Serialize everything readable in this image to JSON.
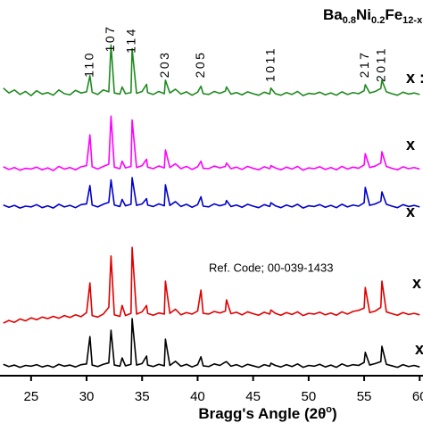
{
  "chart_data": {
    "type": "line",
    "title_parts": [
      "Ba",
      "0.8",
      "Ni",
      "0.2",
      "Fe",
      "12-x"
    ],
    "x_label_parts": [
      "Bragg's Angle (2θ",
      "o",
      ")"
    ],
    "annotation": "Ref. Code; 00-039-1433",
    "peak_labels": [
      {
        "label": "110",
        "x": 30.3
      },
      {
        "label": "107",
        "x": 32.2
      },
      {
        "label": "114",
        "x": 34.1
      },
      {
        "label": "203",
        "x": 37.1
      },
      {
        "label": "205",
        "x": 40.3
      },
      {
        "label": "1011",
        "x": 46.6
      },
      {
        "label": "217",
        "x": 55.1
      },
      {
        "label": "2011",
        "x": 56.6
      }
    ],
    "xlim": [
      22.2,
      60.3
    ],
    "ylim": [
      0,
      100
    ],
    "xticks": [
      25,
      30,
      35,
      40,
      45,
      50,
      55,
      60
    ],
    "x": [
      22.5,
      23,
      23.5,
      24,
      24.5,
      25,
      25.5,
      26,
      26.5,
      27,
      27.5,
      28,
      28.5,
      29,
      29.5,
      30,
      30.3,
      30.5,
      31,
      31.5,
      32,
      32.2,
      32.5,
      33,
      33.2,
      33.5,
      34,
      34.1,
      34.5,
      35,
      35.4,
      35.5,
      36,
      36.5,
      37,
      37.1,
      37.5,
      38,
      38.5,
      39,
      39.5,
      40,
      40.3,
      40.5,
      41,
      41.5,
      42,
      42.5,
      42.6,
      43,
      43.5,
      44,
      44.5,
      45,
      45.5,
      46,
      46.5,
      46.6,
      47,
      47.5,
      48,
      48.5,
      49,
      49.5,
      50,
      50.5,
      51,
      51.5,
      52,
      52.5,
      53,
      53.5,
      54,
      54.5,
      55,
      55.1,
      55.5,
      56,
      56.5,
      56.6,
      57,
      57.5,
      58,
      58.5,
      59,
      59.5,
      60
    ],
    "series": [
      {
        "name": "x :",
        "color": "#1f8a1f",
        "values": [
          76.5,
          75.2,
          76,
          74.8,
          75.6,
          74.5,
          75.8,
          74.9,
          75.3,
          74.6,
          76,
          75,
          74.7,
          75.9,
          75.2,
          75.5,
          79.8,
          75.4,
          74.8,
          76,
          75.5,
          88,
          75.2,
          74.9,
          76.8,
          75,
          75.3,
          87,
          75.1,
          75.6,
          77.5,
          75.3,
          74.8,
          75.6,
          75,
          78.6,
          75.2,
          76.2,
          74.9,
          75.5,
          74.6,
          75.4,
          77,
          75,
          74.8,
          75.6,
          75.1,
          75.7,
          76.8,
          74.9,
          75.3,
          74.7,
          75.5,
          75,
          74.6,
          75.4,
          74.9,
          76.5,
          75,
          74.6,
          75.3,
          74.8,
          75.6,
          74.5,
          75.1,
          74.9,
          75.4,
          74.7,
          75.2,
          74.6,
          75.5,
          74.8,
          75.3,
          75,
          75.8,
          77.4,
          75.2,
          75.6,
          76.4,
          78.6,
          75.5,
          75,
          74.6,
          75.4,
          74.9,
          75.2,
          74.8
        ]
      },
      {
        "name": "x",
        "color": "#ff00ff",
        "values": [
          55.5,
          54.8,
          55.3,
          54.6,
          55.1,
          54.9,
          55.4,
          54.7,
          55.2,
          54.5,
          55.6,
          54.9,
          55.3,
          54.7,
          55.5,
          55.8,
          64,
          55.5,
          54.9,
          55.6,
          56.2,
          69,
          55.4,
          55,
          57,
          55.2,
          55.6,
          68,
          55.3,
          55.8,
          57.5,
          55.4,
          55,
          55.7,
          55.2,
          60,
          55.3,
          56.3,
          55,
          55.6,
          54.8,
          55.5,
          57,
          55.1,
          55,
          55.7,
          55.2,
          55.6,
          56.5,
          55,
          55.4,
          54.8,
          55.6,
          55.1,
          54.7,
          55.5,
          55,
          55.8,
          55.2,
          54.7,
          55.4,
          54.9,
          55.6,
          54.6,
          55.2,
          55,
          55.5,
          54.8,
          55.3,
          54.7,
          55.6,
          54.9,
          55.4,
          55.1,
          56,
          59,
          55.3,
          55.7,
          56.5,
          59.5,
          55.6,
          55.1,
          54.7,
          55.5,
          55,
          55.3,
          54.9
        ]
      },
      {
        "name": "x",
        "color": "#0000cc",
        "values": [
          45.3,
          44.7,
          45.2,
          44.5,
          45,
          44.8,
          45.4,
          44.6,
          45.1,
          44.5,
          45.5,
          44.8,
          45.2,
          44.6,
          45.4,
          45.6,
          50.5,
          45.3,
          44.8,
          45.5,
          46,
          52,
          45.3,
          44.9,
          46.8,
          45.1,
          45.5,
          52.6,
          45.2,
          45.6,
          47,
          45.3,
          44.9,
          45.6,
          45.1,
          50.7,
          45.2,
          46.2,
          44.9,
          45.5,
          44.7,
          45.4,
          47.5,
          45,
          44.8,
          45.6,
          45.1,
          45.5,
          46.5,
          44.9,
          45.3,
          44.7,
          45.5,
          45,
          44.6,
          45.4,
          44.9,
          45.9,
          45.1,
          44.6,
          45.3,
          44.8,
          45.5,
          44.5,
          45.1,
          44.9,
          45.4,
          44.7,
          45.2,
          44.6,
          45.5,
          44.8,
          45.3,
          45,
          45.9,
          50,
          45.2,
          45.6,
          46.3,
          48.8,
          45.5,
          45,
          44.6,
          45.4,
          44.9,
          45.2,
          44.8
        ]
      },
      {
        "name": "x",
        "color": "#e00000",
        "values": [
          13.8,
          14.5,
          14,
          14.9,
          14.4,
          15.2,
          14.7,
          15.4,
          15,
          15.6,
          15.1,
          15.8,
          15.3,
          16,
          15.5,
          16.6,
          24.5,
          15.8,
          15.4,
          16.2,
          18,
          31.7,
          16,
          15.6,
          18.5,
          15.8,
          16.4,
          34,
          16.2,
          16.8,
          18.5,
          16.4,
          15.9,
          16.5,
          16.2,
          25,
          16.4,
          17.5,
          16,
          16.6,
          16.2,
          17,
          22.6,
          16.4,
          16.2,
          16.9,
          16.5,
          17,
          20,
          16.3,
          16.7,
          16,
          16.8,
          16.3,
          15.9,
          16.7,
          16.2,
          17.3,
          16.4,
          15.9,
          16.6,
          16.1,
          16.8,
          15.8,
          16.4,
          16.2,
          16.7,
          16,
          16.5,
          15.9,
          16.8,
          16.2,
          16.9,
          17.2,
          17.8,
          23.3,
          16.6,
          17,
          18,
          25,
          16.8,
          16.3,
          15.9,
          16.6,
          16.1,
          16.4,
          16
        ]
      },
      {
        "name": "x",
        "color": "#000000",
        "values": [
          2.8,
          2.2,
          2.6,
          2,
          2.5,
          2.3,
          2.7,
          2.1,
          2.5,
          2,
          2.8,
          2.3,
          2.6,
          2.1,
          2.7,
          2.9,
          10.2,
          2.6,
          2.2,
          2.8,
          3.2,
          11.9,
          2.6,
          2.3,
          4.5,
          2.4,
          2.8,
          15,
          2.6,
          3,
          5,
          2.6,
          2.2,
          2.8,
          2.4,
          9.5,
          2.5,
          3.6,
          2.3,
          2.8,
          2.1,
          2.7,
          4.8,
          2.4,
          2.2,
          2.9,
          2.5,
          3.4,
          3.5,
          2.3,
          2.7,
          2.1,
          2.8,
          2.4,
          2,
          2.7,
          2.3,
          3.1,
          2.5,
          2.1,
          2.7,
          2.2,
          2.9,
          2,
          2.5,
          2.3,
          2.8,
          2.1,
          2.6,
          2,
          2.9,
          2.3,
          2.7,
          2.5,
          3.3,
          6,
          2.6,
          3,
          3.5,
          7.6,
          2.8,
          2.4,
          2,
          2.7,
          2.2,
          2.5,
          2.1
        ]
      }
    ]
  }
}
